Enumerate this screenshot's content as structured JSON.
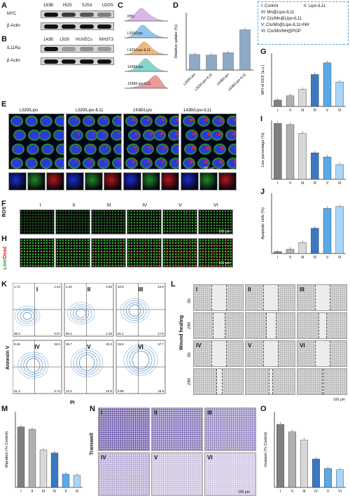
{
  "panels": {
    "A": {
      "letter": "A",
      "columns": [
        "143B",
        "HOS",
        "SJSA",
        "U2OS"
      ],
      "rows": [
        "MYC",
        "β-Actin"
      ]
    },
    "B": {
      "letter": "B",
      "columns": [
        "143B",
        "L929",
        "HUVECs",
        "NIH3T3"
      ],
      "rows": [
        "IL11Ra",
        "β-Actin"
      ]
    },
    "C": {
      "letter": "C",
      "histograms": [
        "PBS",
        "L929/Lipo",
        "L929/Lipo-IL11",
        "143B/Lipo",
        "143B/Lipo-IL11"
      ],
      "colors": [
        "#d9b7ea",
        "#8fc7ee",
        "#f0b97a",
        "#86d8cf",
        "#ef9a9a"
      ]
    },
    "D": {
      "letter": "D",
      "ylabel": "Relative uptake (%)",
      "sig": "***"
    },
    "legend": {
      "items": [
        "I: Control",
        "II: Lipo-IL11",
        "III: Mn@Lipo-IL11",
        "IV: Cis/Mn@Lipo-IL11",
        "V: Cis/Mn@Lipo-IL11+NH",
        "VI: Cis/Mn/NH@PGP"
      ],
      "border_color": "#4aa3e6"
    },
    "E": {
      "letter": "E",
      "titles": [
        "L929/Lipo",
        "L929/Lipo-IL11",
        "143B/Lipo",
        "143B/Lipo-IL11"
      ],
      "scale": "50 μm"
    },
    "F": {
      "letter": "F",
      "side": "ROS",
      "groups": [
        "I",
        "II",
        "III",
        "IV",
        "V",
        "VI"
      ],
      "scale": "100 μm"
    },
    "H": {
      "letter": "H",
      "side_live": "Live/",
      "side_dead": "Dead",
      "scale": "100 μm"
    },
    "G": {
      "letter": "G",
      "ylabel": "MFI of DCF (a.u.)"
    },
    "I": {
      "letter": "I",
      "ylabel": "Live percentage (%)"
    },
    "J": {
      "letter": "J",
      "ylabel": "Apoptotic cells (%)"
    },
    "K": {
      "letter": "K",
      "ylabel": "Annexin V",
      "xlabel": "PI",
      "quads": [
        {
          "g": "I",
          "ul": "1.72",
          "ur": "1.44",
          "ll": "96.3",
          "lr": "0.57"
        },
        {
          "g": "II",
          "ul": "2.44",
          "ur": "4.92",
          "ll": "90.4",
          "lr": "2.26"
        },
        {
          "g": "III",
          "ul": "10.5",
          "ur": "10.5",
          "ll": "61.1",
          "lr": "17.8"
        },
        {
          "g": "IV",
          "ul": "8.45",
          "ur": "33.6",
          "ll": "51.3",
          "lr": "3.74"
        },
        {
          "g": "V",
          "ul": "36.7",
          "ur": "40.2",
          "ll": "12.3",
          "lr": "10.8"
        },
        {
          "g": "VI",
          "ul": "26.5",
          "ur": "47.7",
          "ll": "9.89",
          "lr": "15.9"
        }
      ]
    },
    "L": {
      "letter": "L",
      "side": "Wound healing",
      "t0": "0h",
      "t24": "24h",
      "scale": "100 μm"
    },
    "M": {
      "letter": "M",
      "ylabel": "Migration (% Control)"
    },
    "N": {
      "letter": "N",
      "side": "Transwell",
      "scale": "100 μm"
    },
    "O": {
      "letter": "O",
      "ylabel": "Invasion (% Control)"
    }
  },
  "chart_data": [
    {
      "id": "D",
      "type": "bar",
      "categories": [
        "L929/Lipo",
        "L929/Lipo-IL11",
        "143B/Lipo",
        "143B/Lipo-IL11"
      ],
      "values": [
        27,
        26,
        30,
        70
      ],
      "ylabel": "Relative uptake (%)",
      "ylim": [
        0,
        100
      ],
      "color": "#8ea9c8"
    },
    {
      "id": "G",
      "type": "bar",
      "categories": [
        "I",
        "II",
        "III",
        "IV",
        "V",
        "VI"
      ],
      "values": [
        6,
        10,
        16,
        30,
        41,
        23
      ],
      "ylabel": "MFI of DCF (a.u.)",
      "ylim": [
        0,
        50
      ]
    },
    {
      "id": "I",
      "type": "bar",
      "categories": [
        "I",
        "II",
        "III",
        "IV",
        "V",
        "VI"
      ],
      "values": [
        95,
        93,
        78,
        45,
        38,
        25
      ],
      "ylabel": "Live percentage (%)",
      "ylim": [
        0,
        100
      ]
    },
    {
      "id": "J",
      "type": "bar",
      "categories": [
        "I",
        "II",
        "III",
        "IV",
        "V",
        "VI"
      ],
      "values": [
        3,
        7,
        18,
        42,
        75,
        78
      ],
      "ylabel": "Apoptotic cells (%)",
      "ylim": [
        0,
        100
      ]
    },
    {
      "id": "M",
      "type": "bar",
      "categories": [
        "I",
        "II",
        "III",
        "IV",
        "V",
        "VI"
      ],
      "values": [
        100,
        96,
        62,
        57,
        22,
        20
      ],
      "ylabel": "Migration (% Control)",
      "ylim": [
        0,
        125
      ]
    },
    {
      "id": "O",
      "type": "bar",
      "categories": [
        "I",
        "II",
        "III",
        "IV",
        "V",
        "VI"
      ],
      "values": [
        100,
        88,
        75,
        45,
        30,
        28
      ],
      "ylabel": "Invasion (% Control)",
      "ylim": [
        0,
        120
      ]
    }
  ],
  "bar_colors": [
    "#7f7f7f",
    "#b0b0b0",
    "#d8d8d8",
    "#3a78c3",
    "#5aa9e9",
    "#a9d5f6"
  ]
}
